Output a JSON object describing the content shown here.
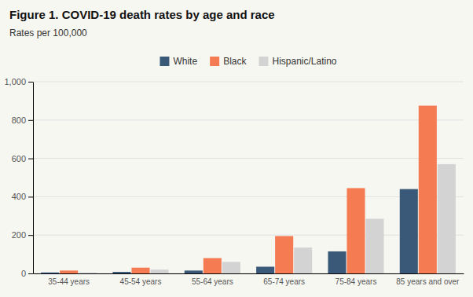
{
  "chart_data": {
    "type": "bar",
    "title": "Figure 1. COVID-19 death rates by age and race",
    "subtitle": "Rates per 100,000",
    "categories": [
      "35-44 years",
      "45-54 years",
      "55-64 years",
      "65-74 years",
      "75-84 years",
      "85 years and over"
    ],
    "series": [
      {
        "name": "White",
        "color": "#3A5878",
        "values": [
          5,
          8,
          15,
          35,
          115,
          440
        ]
      },
      {
        "name": "Black",
        "color": "#F47B52",
        "values": [
          15,
          30,
          80,
          195,
          445,
          875
        ]
      },
      {
        "name": "Hispanic/Latino",
        "color": "#D3D3D3",
        "values": [
          5,
          20,
          60,
          135,
          285,
          570
        ]
      }
    ],
    "ylim": [
      0,
      1000
    ],
    "yticks": [
      0,
      200,
      400,
      600,
      800,
      {
        "value": 1000,
        "label": "1,000"
      }
    ],
    "grid": true,
    "legend": "top"
  }
}
